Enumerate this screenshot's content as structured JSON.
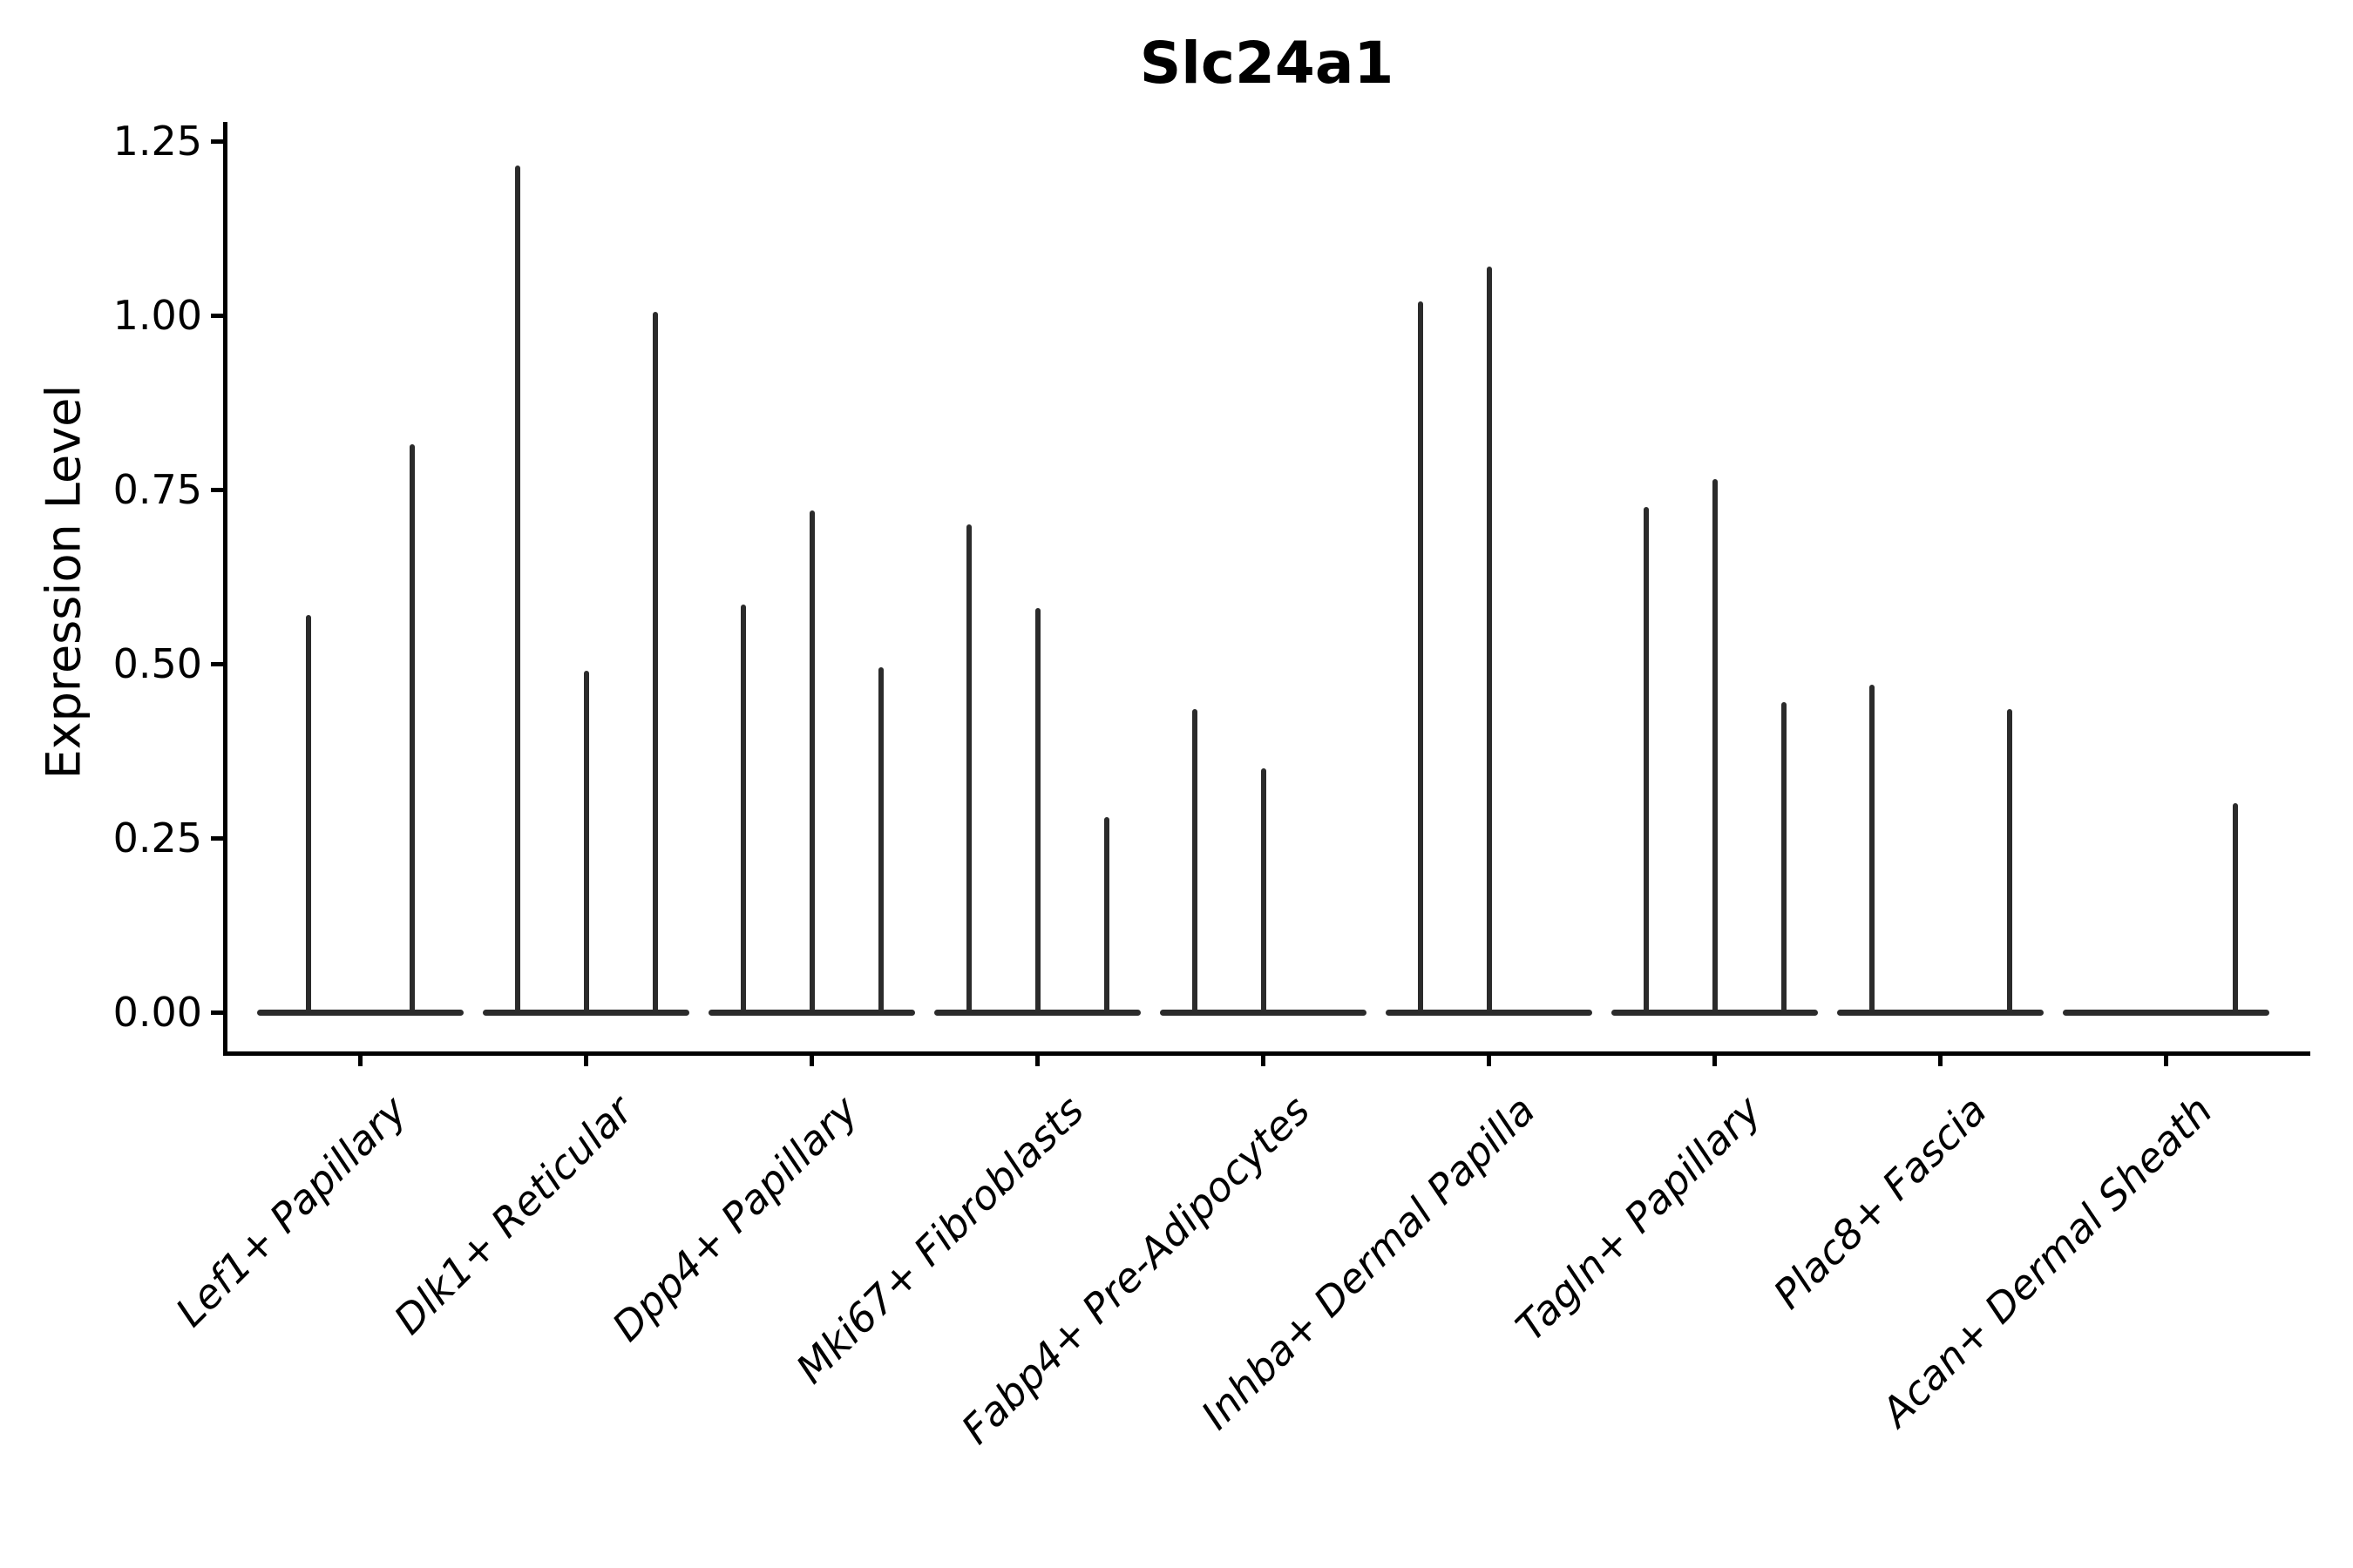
{
  "chart_data": {
    "type": "violin",
    "title": "Slc24a1",
    "ylabel": "Expression Level",
    "xlabel": "",
    "ylim": [
      0,
      1.28
    ],
    "grid": false,
    "legend": null,
    "violin_color": "#2b2b2b",
    "axis_color": "#000000",
    "yticks": [
      {
        "label": "0.00",
        "value": 0
      },
      {
        "label": "0.25",
        "value": 0.25
      },
      {
        "label": "0.50",
        "value": 0.5
      },
      {
        "label": "0.75",
        "value": 0.75
      },
      {
        "label": "1.00",
        "value": 1.0
      },
      {
        "label": "1.25",
        "value": 1.25
      }
    ],
    "groups": [
      {
        "category": "Lef1+ Papillary",
        "violin_peaks": [
          0.57,
          0.815
        ]
      },
      {
        "category": "Dlk1+ Reticular",
        "violin_peaks": [
          1.215,
          0.49,
          1.005
        ]
      },
      {
        "category": "Dpp4+ Papillary",
        "violin_peaks": [
          0.585,
          0.72,
          0.495
        ]
      },
      {
        "category": "Mki67+ Fibroblasts",
        "violin_peaks": [
          0.7,
          0.58,
          0.28
        ]
      },
      {
        "category": "Fabp4+ Pre-Adipocytes",
        "violin_peaks": [
          0.435,
          0.35,
          0
        ]
      },
      {
        "category": "Inhba+ Dermal Papilla",
        "violin_peaks": [
          1.02,
          1.07,
          0
        ]
      },
      {
        "category": "Tagln+ Papillary",
        "violin_peaks": [
          0.725,
          0.765,
          0.445
        ]
      },
      {
        "category": "Plac8+ Fascia",
        "violin_peaks": [
          0.47,
          0,
          0.435
        ]
      },
      {
        "category": "Acan+ Dermal Sheath",
        "violin_peaks": [
          0,
          0,
          0.3
        ]
      }
    ]
  }
}
